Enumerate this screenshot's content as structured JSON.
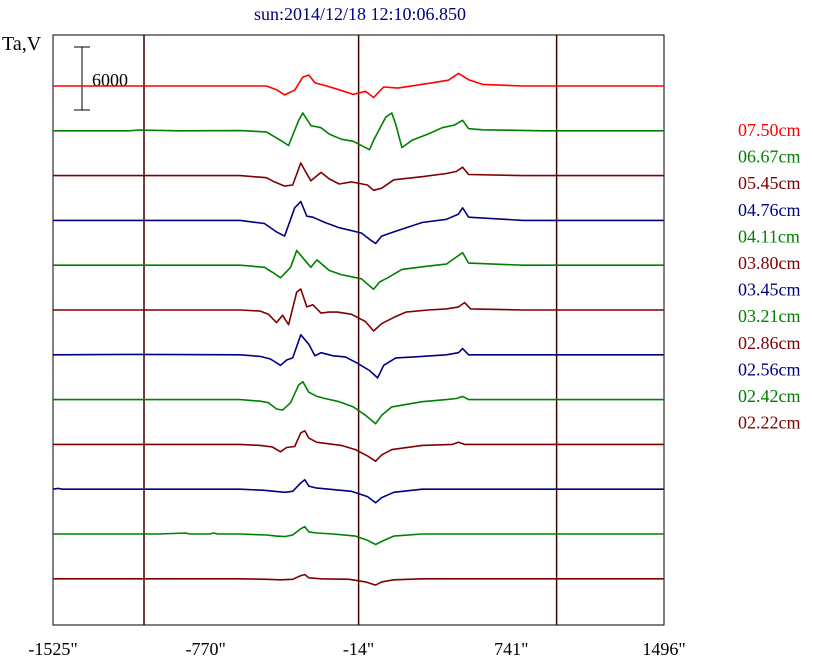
{
  "chart_data": {
    "type": "line",
    "title": "sun:2014/12/18 12:10:06.850",
    "ylabel": "Ta,V",
    "scale_bar_label": "6000",
    "x_ticks": [
      "-1525\"",
      "-770\"",
      "-14\"",
      "741\"",
      "1496\""
    ],
    "x_tick_values": [
      -1525,
      -770,
      -14,
      741,
      1496
    ],
    "xlim": [
      -1525,
      1496
    ],
    "vertical_markers": [
      -1075,
      -14,
      965
    ],
    "series": [
      {
        "name": "07.50cm",
        "color": "#ff0000",
        "baseline": 0,
        "points": [
          [
            -1525,
            0
          ],
          [
            -1000,
            0
          ],
          [
            -700,
            0
          ],
          [
            -470,
            0
          ],
          [
            -420,
            -350
          ],
          [
            -380,
            -850
          ],
          [
            -330,
            -400
          ],
          [
            -290,
            850
          ],
          [
            -260,
            1050
          ],
          [
            -230,
            300
          ],
          [
            -180,
            50
          ],
          [
            -120,
            -300
          ],
          [
            -40,
            -800
          ],
          [
            20,
            -500
          ],
          [
            60,
            -1100
          ],
          [
            110,
            -100
          ],
          [
            180,
            -200
          ],
          [
            350,
            300
          ],
          [
            430,
            550
          ],
          [
            480,
            1200
          ],
          [
            530,
            600
          ],
          [
            600,
            150
          ],
          [
            800,
            0
          ],
          [
            1496,
            0
          ]
        ]
      },
      {
        "name": "06.67cm",
        "color": "#008000",
        "baseline": 0,
        "points": [
          [
            -1525,
            0
          ],
          [
            -1150,
            0
          ],
          [
            -1100,
            80
          ],
          [
            -900,
            0
          ],
          [
            -600,
            20
          ],
          [
            -470,
            -100
          ],
          [
            -400,
            -900
          ],
          [
            -360,
            -1400
          ],
          [
            -310,
            1000
          ],
          [
            -290,
            1700
          ],
          [
            -250,
            500
          ],
          [
            -200,
            300
          ],
          [
            -160,
            -300
          ],
          [
            -100,
            -800
          ],
          [
            -40,
            -1000
          ],
          [
            40,
            -1800
          ],
          [
            60,
            -900
          ],
          [
            120,
            1300
          ],
          [
            150,
            1700
          ],
          [
            170,
            600
          ],
          [
            200,
            -1600
          ],
          [
            250,
            -900
          ],
          [
            330,
            -300
          ],
          [
            400,
            300
          ],
          [
            460,
            550
          ],
          [
            500,
            1000
          ],
          [
            530,
            200
          ],
          [
            600,
            100
          ],
          [
            900,
            0
          ],
          [
            1496,
            0
          ]
        ]
      },
      {
        "name": "05.45cm",
        "color": "#800000",
        "baseline": 0,
        "points": [
          [
            -1525,
            0
          ],
          [
            -600,
            0
          ],
          [
            -470,
            -200
          ],
          [
            -430,
            -600
          ],
          [
            -380,
            -1000
          ],
          [
            -340,
            -900
          ],
          [
            -300,
            1200
          ],
          [
            -280,
            500
          ],
          [
            -250,
            -500
          ],
          [
            -200,
            300
          ],
          [
            -160,
            -300
          ],
          [
            -110,
            -800
          ],
          [
            -50,
            -600
          ],
          [
            30,
            -900
          ],
          [
            60,
            -1400
          ],
          [
            100,
            -1200
          ],
          [
            160,
            -400
          ],
          [
            300,
            -100
          ],
          [
            420,
            200
          ],
          [
            470,
            400
          ],
          [
            500,
            800
          ],
          [
            530,
            100
          ],
          [
            800,
            0
          ],
          [
            1496,
            0
          ]
        ]
      },
      {
        "name": "04.76cm",
        "color": "#000080",
        "baseline": 0,
        "points": [
          [
            -1525,
            0
          ],
          [
            -1150,
            0
          ],
          [
            -600,
            0
          ],
          [
            -480,
            -300
          ],
          [
            -420,
            -1100
          ],
          [
            -380,
            -1500
          ],
          [
            -330,
            1200
          ],
          [
            -300,
            1800
          ],
          [
            -270,
            400
          ],
          [
            -240,
            300
          ],
          [
            -180,
            -200
          ],
          [
            -110,
            -700
          ],
          [
            0,
            -1200
          ],
          [
            40,
            -1800
          ],
          [
            70,
            -2200
          ],
          [
            100,
            -1500
          ],
          [
            160,
            -1100
          ],
          [
            300,
            -200
          ],
          [
            420,
            100
          ],
          [
            480,
            600
          ],
          [
            500,
            1200
          ],
          [
            530,
            300
          ],
          [
            800,
            0
          ],
          [
            1496,
            0
          ]
        ]
      },
      {
        "name": "04.11cm",
        "color": "#008000",
        "baseline": 0,
        "points": [
          [
            -1525,
            0
          ],
          [
            -1000,
            0
          ],
          [
            -600,
            0
          ],
          [
            -480,
            -200
          ],
          [
            -430,
            -800
          ],
          [
            -400,
            -1200
          ],
          [
            -350,
            -200
          ],
          [
            -320,
            1400
          ],
          [
            -290,
            700
          ],
          [
            -250,
            -200
          ],
          [
            -220,
            500
          ],
          [
            -160,
            -500
          ],
          [
            -100,
            -900
          ],
          [
            0,
            -1300
          ],
          [
            60,
            -2300
          ],
          [
            90,
            -1600
          ],
          [
            130,
            -1200
          ],
          [
            200,
            -400
          ],
          [
            320,
            -100
          ],
          [
            420,
            100
          ],
          [
            500,
            1200
          ],
          [
            530,
            200
          ],
          [
            800,
            0
          ],
          [
            1496,
            0
          ]
        ]
      },
      {
        "name": "03.80cm",
        "color": "#800000",
        "baseline": 0,
        "points": [
          [
            -1525,
            0
          ],
          [
            -1000,
            0
          ],
          [
            -600,
            0
          ],
          [
            -500,
            -100
          ],
          [
            -460,
            -400
          ],
          [
            -420,
            -1200
          ],
          [
            -390,
            -500
          ],
          [
            -360,
            -1400
          ],
          [
            -320,
            1700
          ],
          [
            -300,
            2000
          ],
          [
            -270,
            300
          ],
          [
            -240,
            500
          ],
          [
            -200,
            -300
          ],
          [
            -160,
            -200
          ],
          [
            -120,
            -200
          ],
          [
            -50,
            -400
          ],
          [
            20,
            -1100
          ],
          [
            60,
            -2000
          ],
          [
            100,
            -1300
          ],
          [
            160,
            -700
          ],
          [
            220,
            -200
          ],
          [
            330,
            0
          ],
          [
            420,
            100
          ],
          [
            480,
            300
          ],
          [
            510,
            700
          ],
          [
            540,
            100
          ],
          [
            800,
            0
          ],
          [
            1496,
            0
          ]
        ]
      },
      {
        "name": "03.45cm",
        "color": "#000080",
        "baseline": 0,
        "points": [
          [
            -1525,
            0
          ],
          [
            -1150,
            40
          ],
          [
            -900,
            20
          ],
          [
            -600,
            0
          ],
          [
            -500,
            -150
          ],
          [
            -450,
            -400
          ],
          [
            -400,
            -1000
          ],
          [
            -370,
            -500
          ],
          [
            -340,
            -300
          ],
          [
            -300,
            1900
          ],
          [
            -260,
            1000
          ],
          [
            -230,
            -100
          ],
          [
            -200,
            200
          ],
          [
            -140,
            -100
          ],
          [
            -80,
            -200
          ],
          [
            -20,
            -800
          ],
          [
            40,
            -1500
          ],
          [
            80,
            -2200
          ],
          [
            110,
            -1000
          ],
          [
            170,
            -300
          ],
          [
            260,
            -200
          ],
          [
            420,
            0
          ],
          [
            480,
            200
          ],
          [
            500,
            600
          ],
          [
            530,
            0
          ],
          [
            800,
            0
          ],
          [
            1496,
            0
          ]
        ]
      },
      {
        "name": "03.21cm",
        "color": "#008000",
        "baseline": 0,
        "points": [
          [
            -1525,
            0
          ],
          [
            -1150,
            0
          ],
          [
            -600,
            0
          ],
          [
            -500,
            -150
          ],
          [
            -460,
            -300
          ],
          [
            -420,
            -900
          ],
          [
            -390,
            -1000
          ],
          [
            -350,
            -300
          ],
          [
            -310,
            1400
          ],
          [
            -290,
            1700
          ],
          [
            -260,
            700
          ],
          [
            -220,
            300
          ],
          [
            -180,
            100
          ],
          [
            -110,
            -200
          ],
          [
            -40,
            -700
          ],
          [
            20,
            -1500
          ],
          [
            70,
            -2300
          ],
          [
            100,
            -1500
          ],
          [
            150,
            -700
          ],
          [
            300,
            -200
          ],
          [
            420,
            0
          ],
          [
            470,
            100
          ],
          [
            500,
            300
          ],
          [
            530,
            0
          ],
          [
            800,
            0
          ],
          [
            1496,
            0
          ]
        ]
      },
      {
        "name": "02.86cm",
        "color": "#800000",
        "baseline": 0,
        "points": [
          [
            -1525,
            0
          ],
          [
            -1150,
            0
          ],
          [
            -600,
            0
          ],
          [
            -500,
            -100
          ],
          [
            -440,
            -250
          ],
          [
            -400,
            -700
          ],
          [
            -370,
            -300
          ],
          [
            -330,
            -200
          ],
          [
            -300,
            1100
          ],
          [
            -280,
            1300
          ],
          [
            -260,
            600
          ],
          [
            -220,
            200
          ],
          [
            -180,
            100
          ],
          [
            -100,
            -100
          ],
          [
            -30,
            -500
          ],
          [
            30,
            -1100
          ],
          [
            70,
            -1600
          ],
          [
            100,
            -1000
          ],
          [
            150,
            -500
          ],
          [
            300,
            -100
          ],
          [
            450,
            0
          ],
          [
            480,
            200
          ],
          [
            510,
            0
          ],
          [
            800,
            0
          ],
          [
            1496,
            0
          ]
        ]
      },
      {
        "name": "02.56cm",
        "color": "#000080",
        "baseline": 0,
        "points": [
          [
            -1525,
            0
          ],
          [
            -1500,
            80
          ],
          [
            -1480,
            0
          ],
          [
            -1150,
            0
          ],
          [
            -900,
            0
          ],
          [
            -600,
            0
          ],
          [
            -480,
            -100
          ],
          [
            -430,
            -200
          ],
          [
            -380,
            -300
          ],
          [
            -340,
            -200
          ],
          [
            -300,
            600
          ],
          [
            -280,
            900
          ],
          [
            -260,
            300
          ],
          [
            -220,
            100
          ],
          [
            -160,
            0
          ],
          [
            -50,
            -200
          ],
          [
            30,
            -700
          ],
          [
            70,
            -1300
          ],
          [
            100,
            -800
          ],
          [
            160,
            -300
          ],
          [
            300,
            0
          ],
          [
            1496,
            0
          ]
        ]
      },
      {
        "name": "02.42cm",
        "color": "#008000",
        "baseline": 0,
        "points": [
          [
            -1525,
            0
          ],
          [
            -1150,
            0
          ],
          [
            -1000,
            0
          ],
          [
            -870,
            100
          ],
          [
            -850,
            0
          ],
          [
            -750,
            0
          ],
          [
            -730,
            100
          ],
          [
            -710,
            0
          ],
          [
            -600,
            0
          ],
          [
            -470,
            -100
          ],
          [
            -420,
            -200
          ],
          [
            -380,
            -250
          ],
          [
            -340,
            -100
          ],
          [
            -300,
            500
          ],
          [
            -280,
            700
          ],
          [
            -260,
            200
          ],
          [
            -220,
            100
          ],
          [
            -140,
            0
          ],
          [
            -30,
            -200
          ],
          [
            30,
            -600
          ],
          [
            70,
            -1000
          ],
          [
            100,
            -700
          ],
          [
            160,
            -200
          ],
          [
            300,
            0
          ],
          [
            1496,
            0
          ]
        ]
      },
      {
        "name": "02.22cm",
        "color": "#800000",
        "baseline": 0,
        "points": [
          [
            -1525,
            0
          ],
          [
            -1150,
            0
          ],
          [
            -600,
            0
          ],
          [
            -470,
            -50
          ],
          [
            -400,
            -100
          ],
          [
            -340,
            -50
          ],
          [
            -300,
            300
          ],
          [
            -280,
            400
          ],
          [
            -260,
            100
          ],
          [
            -200,
            0
          ],
          [
            -60,
            -50
          ],
          [
            20,
            -300
          ],
          [
            70,
            -600
          ],
          [
            100,
            -300
          ],
          [
            160,
            -100
          ],
          [
            300,
            0
          ],
          [
            1496,
            0
          ]
        ]
      }
    ]
  }
}
